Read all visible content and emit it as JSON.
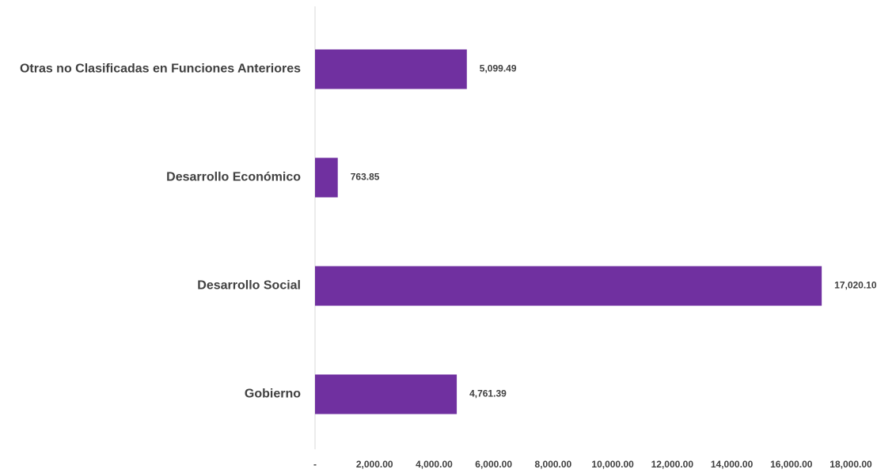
{
  "chart_data": {
    "type": "bar",
    "orientation": "horizontal",
    "categories": [
      "Otras no Clasificadas en Funciones Anteriores",
      "Desarrollo Económico",
      "Desarrollo Social",
      "Gobierno"
    ],
    "values": [
      5099.49,
      763.85,
      17020.1,
      4761.39
    ],
    "value_labels": [
      "5,099.49",
      "763.85",
      "17,020.10",
      "4,761.39"
    ],
    "xlim": [
      0,
      18000
    ],
    "x_ticks": [
      0,
      2000,
      4000,
      6000,
      8000,
      10000,
      12000,
      14000,
      16000,
      18000
    ],
    "x_tick_labels": [
      "-",
      "2,000.00",
      "4,000.00",
      "6,000.00",
      "8,000.00",
      "10,000.00",
      "12,000.00",
      "14,000.00",
      "16,000.00",
      "18,000.00"
    ],
    "bar_color": "#7030A0",
    "grid": false,
    "legend": "none"
  }
}
